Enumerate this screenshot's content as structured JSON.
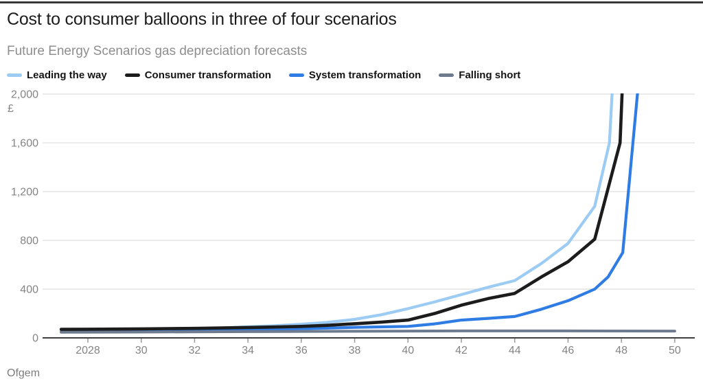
{
  "colors": {
    "top_rule": "#383838",
    "title_text": "#1c1c1c",
    "subtitle_text": "#8e8e8e",
    "axis_text": "#848484",
    "gridline": "#dedede",
    "axis_line": "#3f3f3f",
    "tick_mark": "#9a9a9a",
    "source_text": "#7d7d7d"
  },
  "chart_data": {
    "type": "line",
    "title": "Cost to consumer balloons in three of four scenarios",
    "subtitle": "Future Energy Scenarios gas depreciation forecasts",
    "source": "Ofgem",
    "legend_position": "top",
    "grid": "horizontal",
    "x_axis": {
      "tick_years": [
        2028,
        2030,
        2032,
        2034,
        2036,
        2038,
        2040,
        2042,
        2044,
        2046,
        2048,
        2050
      ],
      "tick_labels": [
        "2028",
        "30",
        "32",
        "34",
        "36",
        "38",
        "40",
        "42",
        "44",
        "46",
        "48",
        "50"
      ],
      "range": [
        2026.3,
        2050.75
      ]
    },
    "y_axis": {
      "unit": "£",
      "tick_values": [
        0,
        400,
        800,
        1200,
        1600,
        2000
      ],
      "tick_labels": [
        "0",
        "400",
        "800",
        "1,200",
        "1,600",
        "2,000"
      ],
      "range": [
        0,
        2000
      ]
    },
    "series": [
      {
        "name": "Leading the way",
        "color": "#9ccbf3",
        "x": [
          2027,
          2028,
          2029,
          2030,
          2031,
          2032,
          2033,
          2034,
          2035,
          2036,
          2037,
          2038,
          2039,
          2040,
          2041,
          2042,
          2043,
          2044,
          2045,
          2046,
          2047,
          2047.55,
          2047.75
        ],
        "y": [
          52,
          55,
          58,
          62,
          67,
          73,
          81,
          91,
          100,
          112,
          128,
          152,
          190,
          240,
          295,
          355,
          415,
          470,
          610,
          775,
          1080,
          1600,
          2400
        ]
      },
      {
        "name": "Consumer transformation",
        "color": "#1c1c1c",
        "x": [
          2027,
          2028,
          2029,
          2030,
          2031,
          2032,
          2033,
          2034,
          2035,
          2036,
          2037,
          2038,
          2039,
          2040,
          2041,
          2042,
          2043,
          2044,
          2045,
          2046,
          2047,
          2047.95,
          2048.1
        ],
        "y": [
          70,
          71,
          72,
          74,
          76,
          78,
          81,
          85,
          89,
          94,
          103,
          116,
          129,
          146,
          200,
          268,
          322,
          365,
          500,
          625,
          810,
          1600,
          2400
        ]
      },
      {
        "name": "System transformation",
        "color": "#2e7ce4",
        "x": [
          2027,
          2028,
          2029,
          2030,
          2031,
          2032,
          2033,
          2034,
          2035,
          2036,
          2037,
          2038,
          2039,
          2040,
          2041,
          2042,
          2043,
          2044,
          2045,
          2046,
          2047,
          2047.5,
          2048.05,
          2048.6,
          2048.8
        ],
        "y": [
          48,
          50,
          52,
          54,
          56,
          59,
          62,
          66,
          70,
          75,
          80,
          86,
          90,
          94,
          115,
          146,
          160,
          175,
          235,
          305,
          400,
          500,
          700,
          2000,
          2400
        ]
      },
      {
        "name": "Falling short",
        "color": "#6e7b8f",
        "x": [
          2027,
          2030,
          2034,
          2038,
          2042,
          2046,
          2050
        ],
        "y": [
          46,
          48,
          51,
          54,
          57,
          57,
          56
        ]
      }
    ]
  }
}
